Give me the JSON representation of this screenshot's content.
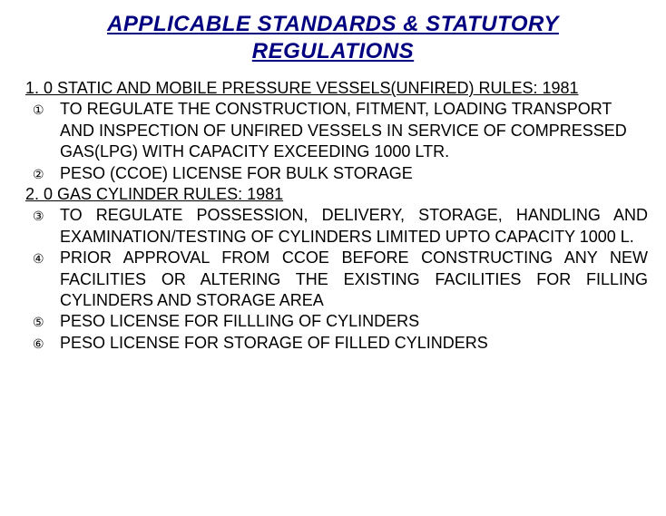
{
  "title": "APPLICABLE STANDARDS & STATUTORY REGULATIONS",
  "sections": [
    {
      "header": "1. 0 STATIC AND MOBILE PRESSURE VESSELS(UNFIRED) RULES: 1981",
      "bullets": [
        "TO REGULATE THE CONSTRUCTION, FITMENT, LOADING TRANSPORT AND INSPECTION OF UNFIRED VESSELS IN SERVICE OF COMPRESSED GAS(LPG) WITH CAPACITY EXCEEDING 1000 LTR.",
        "PESO (CCOE) LICENSE FOR BULK STORAGE"
      ]
    },
    {
      "header": "2. 0 GAS CYLINDER RULES: 1981",
      "bullets": [
        "TO REGULATE POSSESSION, DELIVERY, STORAGE, HANDLING AND EXAMINATION/TESTING OF CYLINDERS LIMITED UPTO CAPACITY 1000 L.",
        "PRIOR APPROVAL FROM CCOE BEFORE CONSTRUCTING ANY NEW FACILITIES OR ALTERING THE EXISTING FACILITIES FOR FILLING CYLINDERS AND STORAGE AREA",
        "PESO LICENSE FOR FILLLING OF CYLINDERS",
        "PESO LICENSE FOR STORAGE OF FILLED CYLINDERS"
      ]
    }
  ],
  "bullet_symbols": [
    "①",
    "②",
    "③",
    "④",
    "⑤",
    "⑥"
  ],
  "colors": {
    "title": "#000080",
    "body": "#000000",
    "background": "#ffffff"
  },
  "fonts": {
    "title_size": 24,
    "body_size": 18
  }
}
